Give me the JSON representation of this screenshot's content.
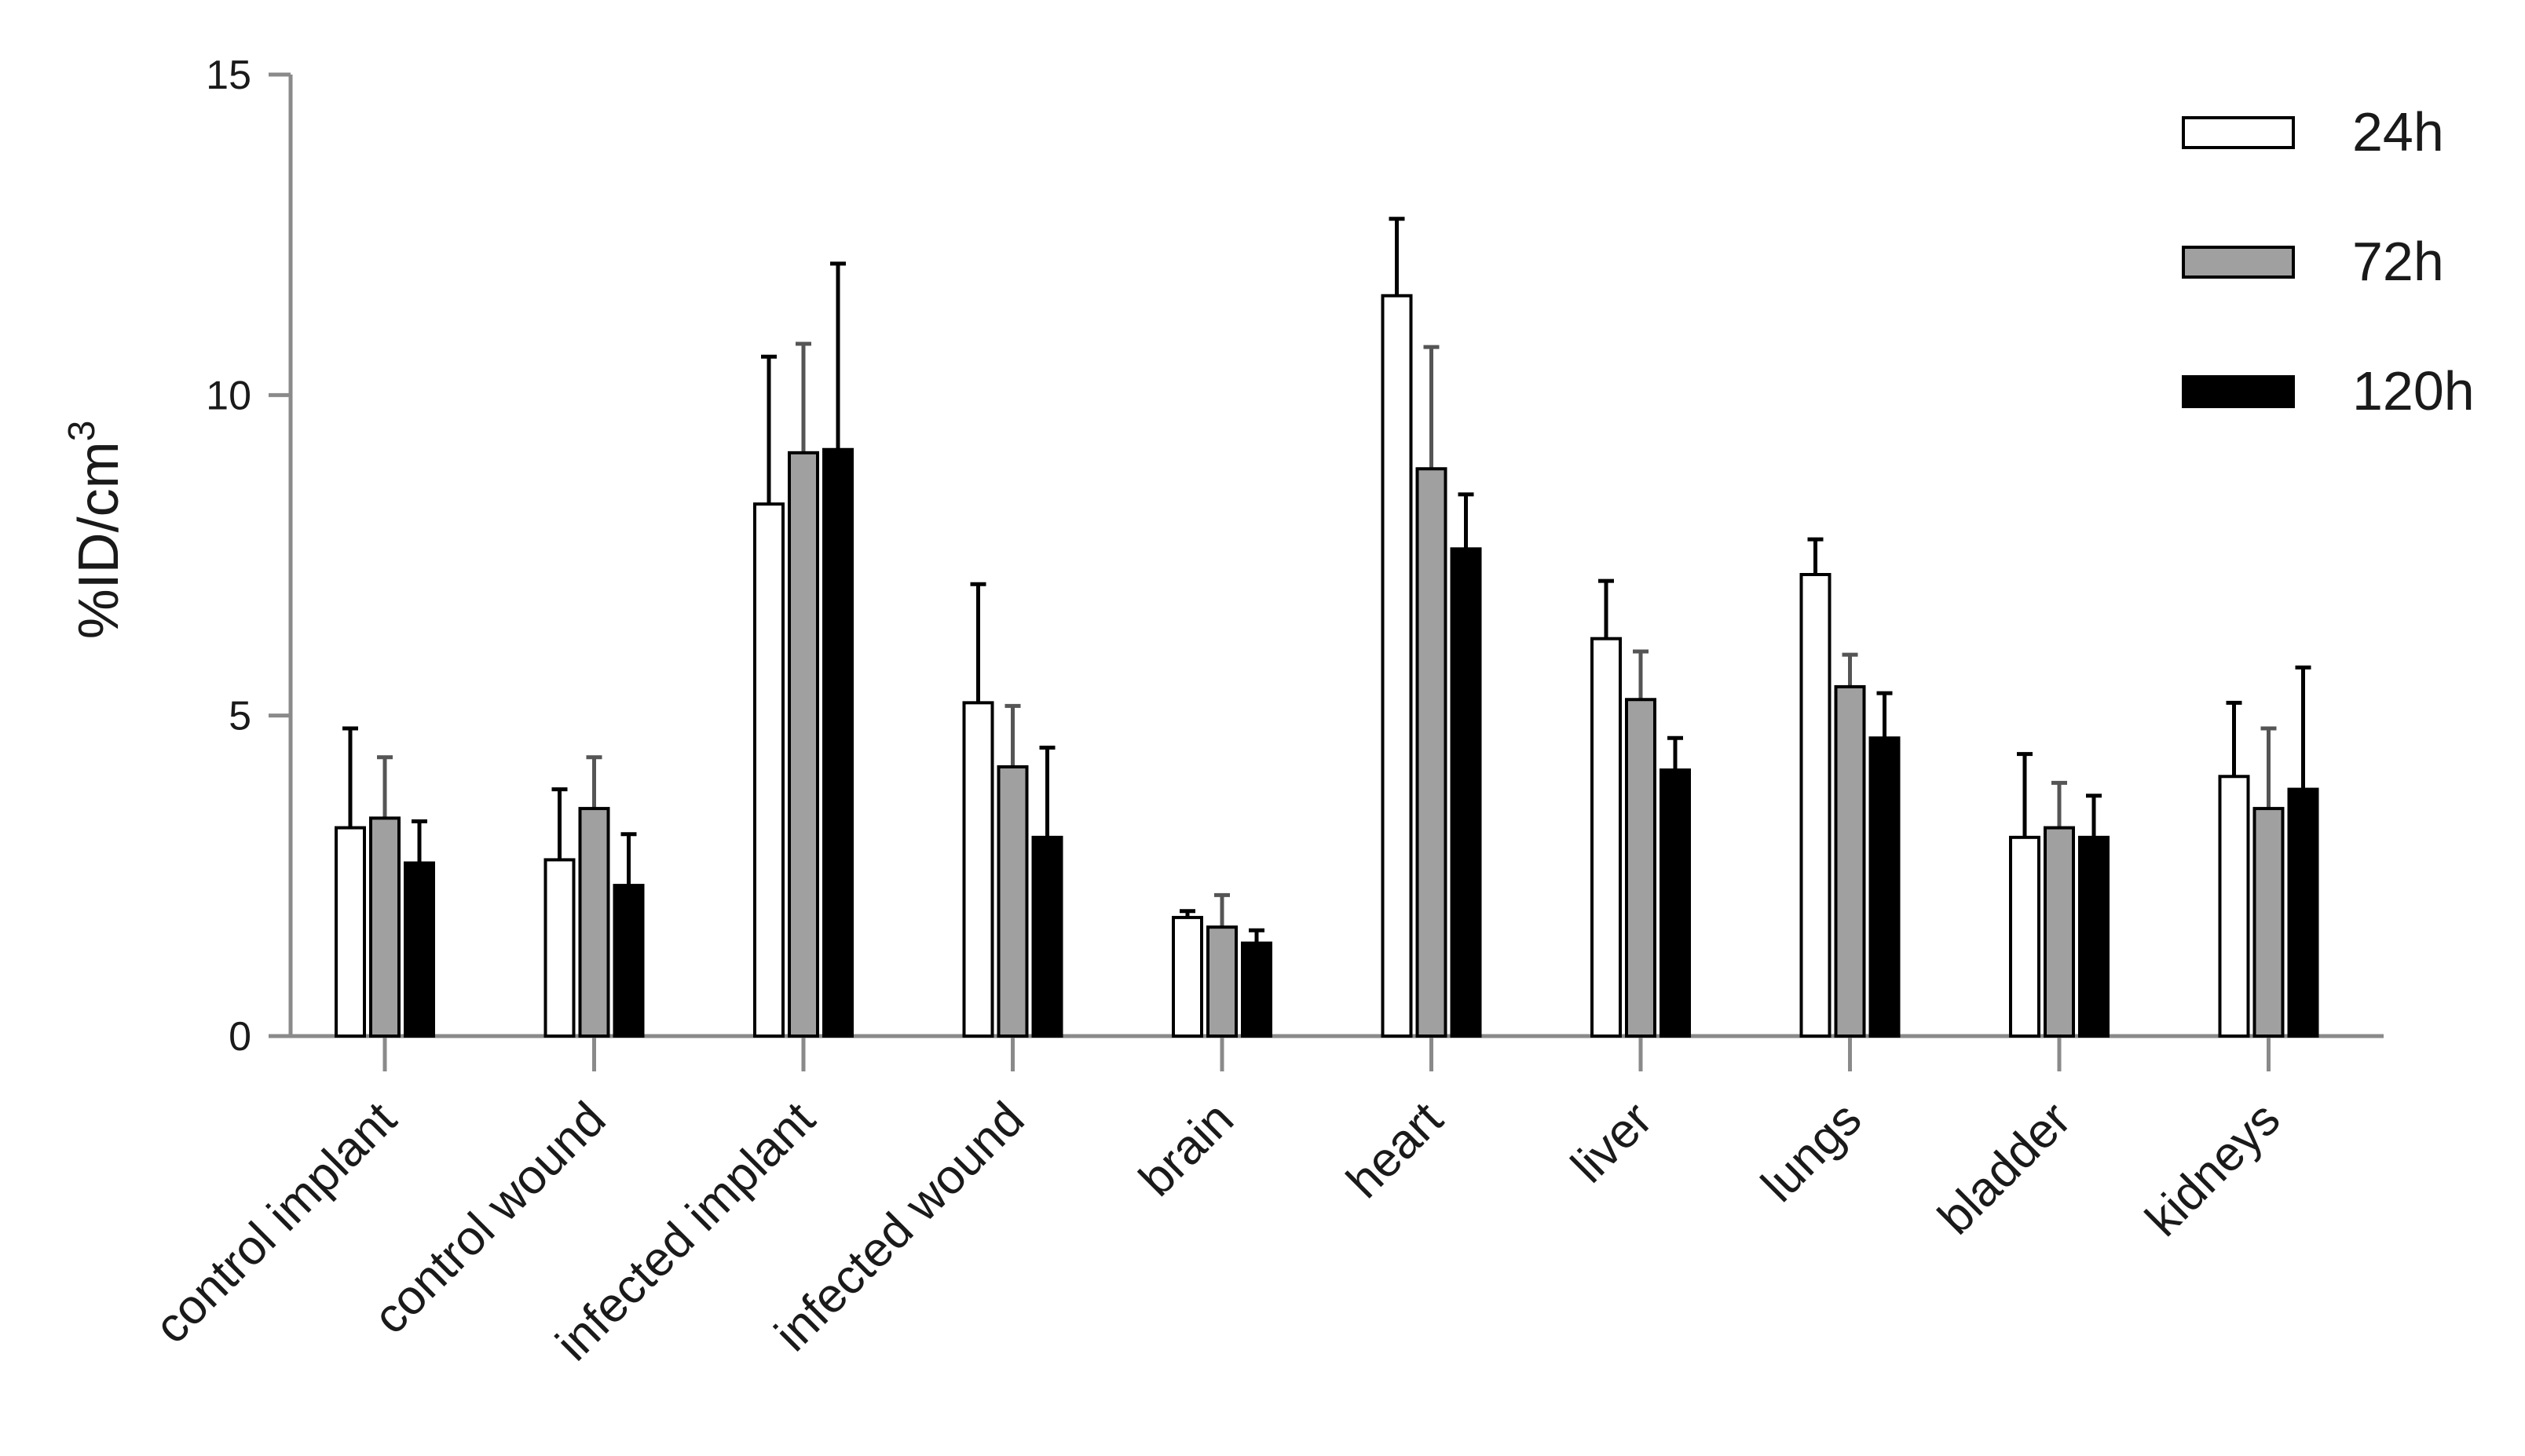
{
  "chart_data": {
    "type": "bar",
    "ylabel": "%ID/cm",
    "ylabel_superscript": "3",
    "ylim": [
      0,
      15
    ],
    "yticks": [
      0,
      5,
      10,
      15
    ],
    "grid": false,
    "legend_position": "top-right",
    "categories": [
      "control implant",
      "control wound",
      "infected implant",
      "infected wound",
      "brain",
      "heart",
      "liver",
      "lungs",
      "bladder",
      "kidneys"
    ],
    "series": [
      {
        "name": "24h",
        "color": "#ffffff",
        "values": [
          3.25,
          2.75,
          8.3,
          5.2,
          1.85,
          11.55,
          6.2,
          7.2,
          3.1,
          4.05
        ],
        "errors": [
          1.55,
          1.1,
          2.3,
          1.85,
          0.1,
          1.2,
          0.9,
          0.55,
          1.3,
          1.15
        ]
      },
      {
        "name": "72h",
        "color": "#a0a0a0",
        "values": [
          3.4,
          3.55,
          9.1,
          4.2,
          1.7,
          8.85,
          5.25,
          5.45,
          3.25,
          3.55
        ],
        "errors": [
          0.95,
          0.8,
          1.7,
          0.95,
          0.5,
          1.9,
          0.75,
          0.5,
          0.7,
          1.25
        ]
      },
      {
        "name": "120h",
        "color": "#000000",
        "values": [
          2.7,
          2.35,
          9.15,
          3.1,
          1.45,
          7.6,
          4.15,
          4.65,
          3.1,
          3.85
        ],
        "errors": [
          0.65,
          0.8,
          2.9,
          1.4,
          0.2,
          0.85,
          0.5,
          0.7,
          0.65,
          1.9
        ]
      }
    ]
  }
}
